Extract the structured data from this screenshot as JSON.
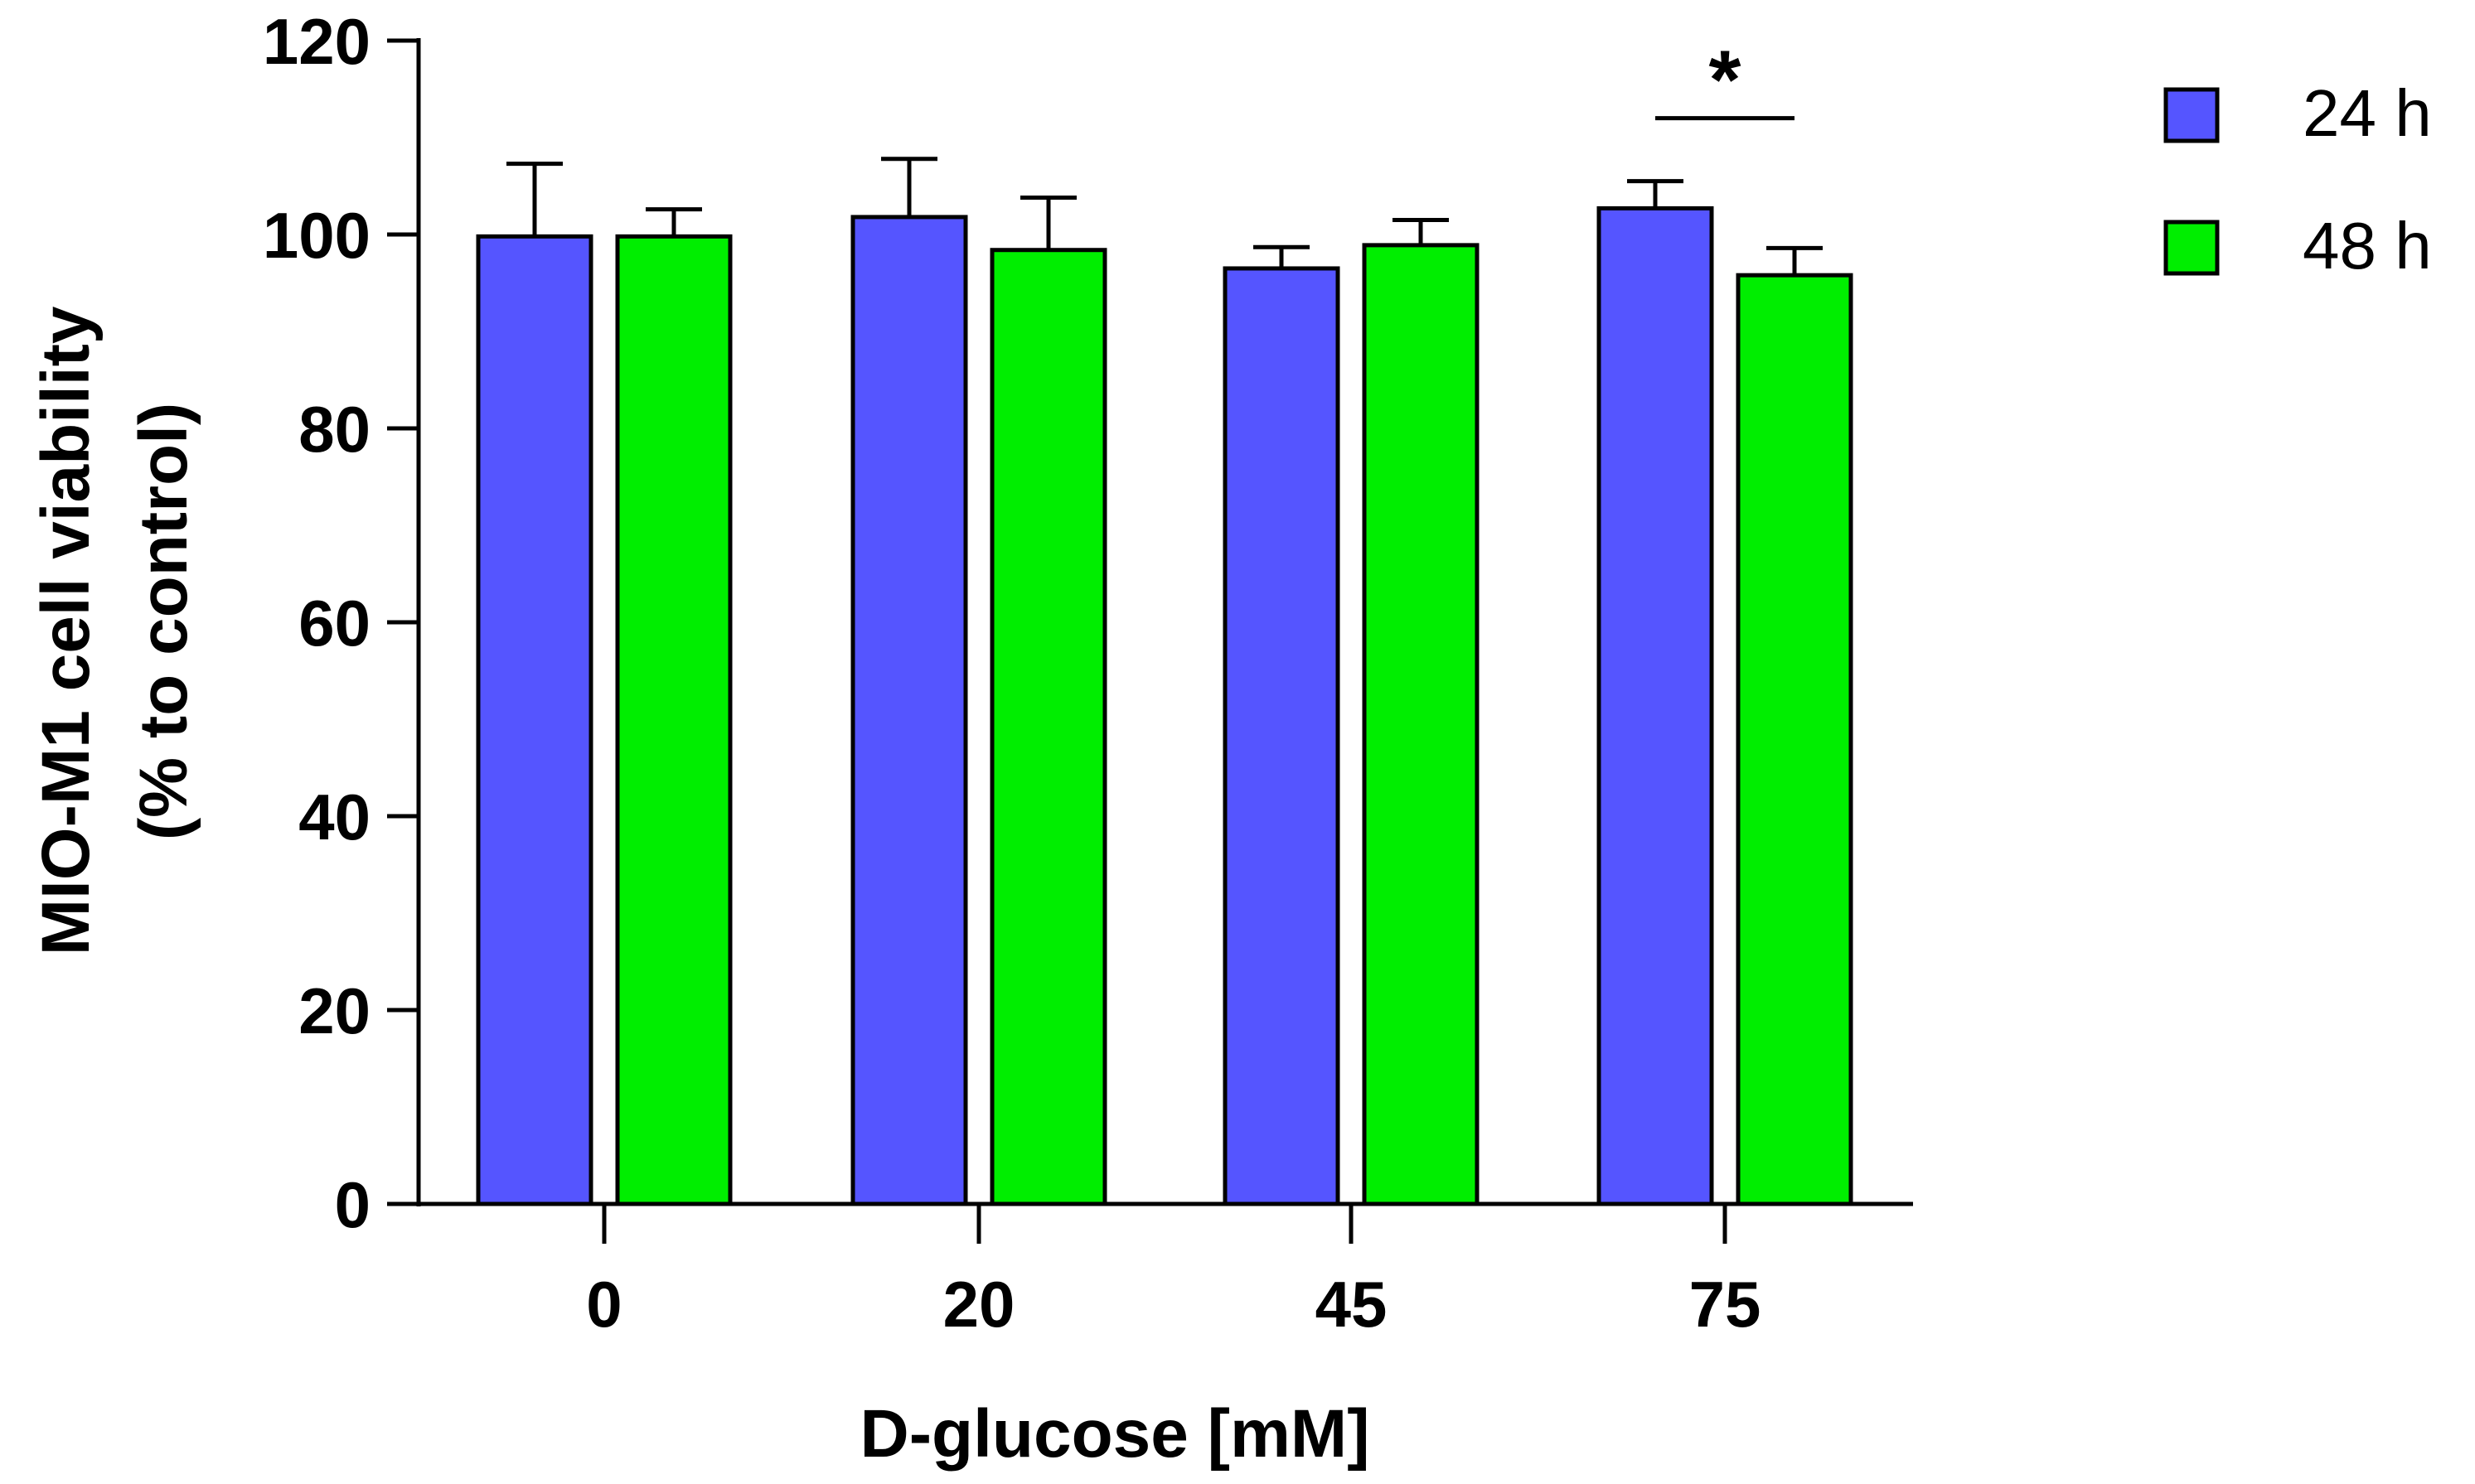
{
  "chart_data": {
    "type": "bar",
    "title": "",
    "xlabel": "D-glucose [mM]",
    "ylabel_line1": "MIO-M1 cell viability",
    "ylabel_line2": "(% to control)",
    "ylim": [
      0,
      120
    ],
    "yticks": [
      0,
      20,
      40,
      60,
      80,
      100,
      120
    ],
    "categories": [
      "0",
      "20",
      "45",
      "75"
    ],
    "series": [
      {
        "name": "24 h",
        "color": "#5555ff",
        "values": [
          99.8,
          101.8,
          96.5,
          102.7
        ],
        "errors": [
          7.5,
          6.0,
          2.2,
          2.8
        ]
      },
      {
        "name": "48 h",
        "color": "#00ee00",
        "values": [
          99.8,
          98.4,
          98.9,
          95.8
        ],
        "errors": [
          2.8,
          5.4,
          2.6,
          2.8
        ]
      }
    ],
    "legend": "top-right",
    "annotations": [
      {
        "category": "75",
        "text": "*",
        "bar_value": 112
      }
    ]
  }
}
